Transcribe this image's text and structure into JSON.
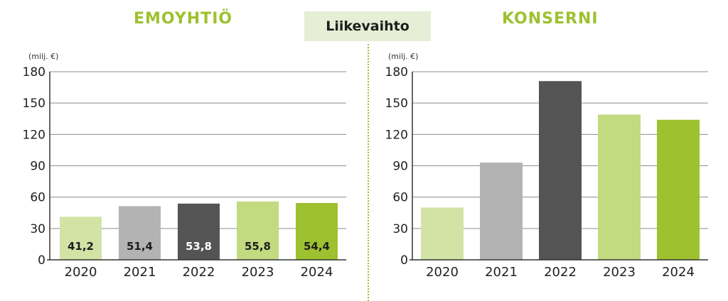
{
  "header": {
    "center_label": "Liikevaihto"
  },
  "colors": {
    "accent": "#9dc12f",
    "badge_bg": "#e6eed6",
    "grid": "#8c8c8c"
  },
  "chart_data": [
    {
      "type": "bar",
      "title": "EMOYHTIÖ",
      "unit_label": "(milj. €)",
      "categories": [
        "2020",
        "2021",
        "2022",
        "2023",
        "2024"
      ],
      "values": [
        41.2,
        51.4,
        53.8,
        55.8,
        54.4
      ],
      "data_labels": [
        "41,2",
        "51,4",
        "53,8",
        "55,8",
        "54,4"
      ],
      "bar_colors": [
        "#d3e3a6",
        "#b3b3b3",
        "#545454",
        "#c2da80",
        "#9dc12f"
      ],
      "label_colors": [
        "#1e1e1e",
        "#1e1e1e",
        "#ffffff",
        "#1e1e1e",
        "#1e1e1e"
      ],
      "ylim": [
        0,
        180
      ],
      "yticks": [
        0,
        30,
        60,
        90,
        120,
        150,
        180
      ],
      "grid": true
    },
    {
      "type": "bar",
      "title": "KONSERNI",
      "unit_label": "(milj. €)",
      "categories": [
        "2020",
        "2021",
        "2022",
        "2023",
        "2024"
      ],
      "values": [
        50,
        93,
        171,
        139,
        134
      ],
      "bar_colors": [
        "#d3e3a6",
        "#b3b3b3",
        "#545454",
        "#c2da80",
        "#9dc12f"
      ],
      "ylim": [
        0,
        180
      ],
      "yticks": [
        0,
        30,
        60,
        90,
        120,
        150,
        180
      ],
      "grid": true
    }
  ]
}
